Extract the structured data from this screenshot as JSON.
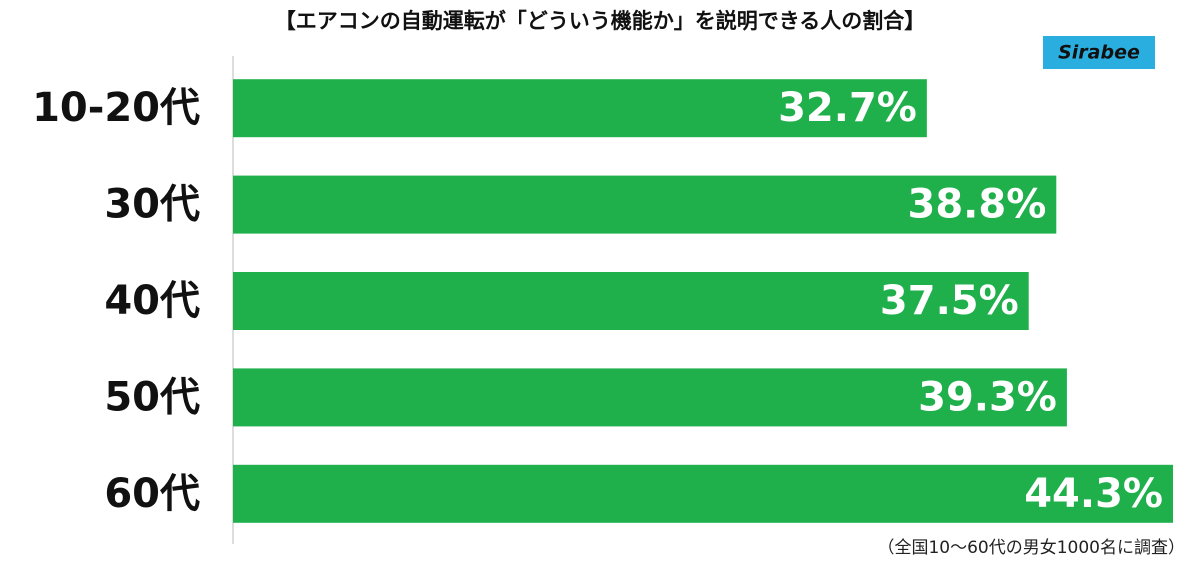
{
  "chart_data": {
    "type": "barh",
    "title": "【エアコンの自動運転が「どういう機能か」を説明できる人の割合】",
    "logo": "Sirabee",
    "note": "（全国10〜60代の男女1000名に調査）",
    "categories": [
      "10-20代",
      "30代",
      "40代",
      "50代",
      "60代"
    ],
    "values": [
      32.7,
      38.8,
      37.5,
      39.3,
      44.3
    ],
    "value_labels": [
      "32.7%",
      "38.8%",
      "37.5%",
      "39.3%",
      "44.3%"
    ],
    "color": "#1fb04c",
    "xlim": [
      0,
      44.3
    ]
  }
}
